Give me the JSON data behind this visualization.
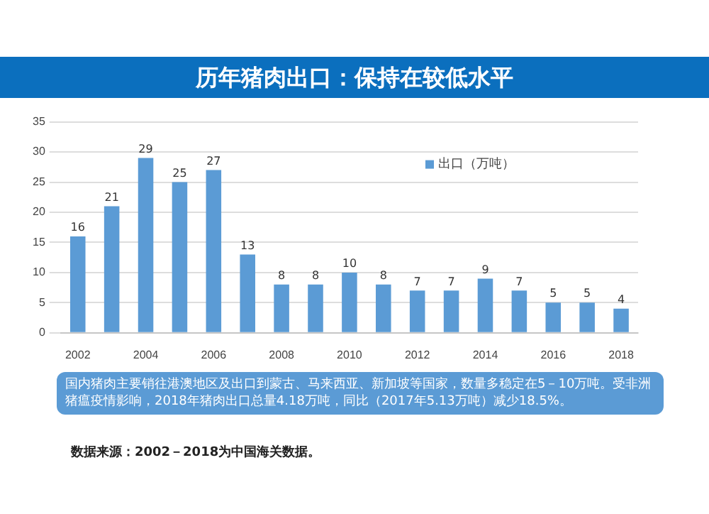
{
  "chart_data": {
    "type": "bar",
    "title": "历年猪肉出口：保持在较低水平",
    "categories": [
      "2002",
      null,
      "2004",
      null,
      "2006",
      null,
      "2008",
      null,
      "2010",
      null,
      "2012",
      null,
      "2014",
      null,
      "2016",
      null,
      "2018"
    ],
    "series": [
      {
        "name": "出口（万吨）",
        "color": "#5b9bd5",
        "values": [
          16,
          21,
          29,
          25,
          27,
          13,
          8,
          8,
          10,
          8,
          7,
          7,
          9,
          7,
          5,
          5,
          4
        ]
      }
    ],
    "ylim": [
      0,
      35
    ],
    "yticks": [
      0,
      5,
      10,
      15,
      20,
      25,
      30,
      35
    ],
    "grid": "y",
    "legend": "right",
    "data_labels": true,
    "annotations": [
      "国内猪肉主要销往港澳地区及出口到蒙古、马来西亚、新加坡等国家，数量多稳定在5－10万吨。受非洲猪瘟疫情影响，2018年猪肉出口总量4.18万吨，同比（2017年5.13万吨）减少18.5%。",
      "数据来源：2002－2018为中国海关数据。"
    ]
  }
}
